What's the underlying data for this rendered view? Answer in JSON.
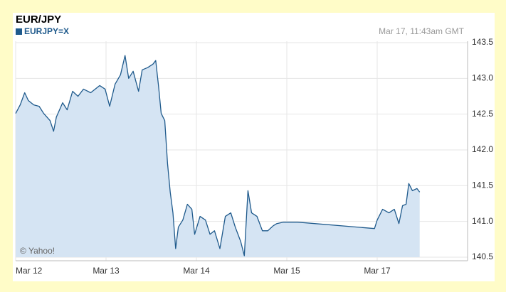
{
  "chart_data": {
    "type": "line",
    "title": "EUR/JPY",
    "timestamp": "Mar 17, 11:43am GMT",
    "source_note": "© Yahoo!",
    "x": [
      0,
      0.05,
      0.1,
      0.14,
      0.2,
      0.26,
      0.31,
      0.38,
      0.42,
      0.45,
      0.52,
      0.57,
      0.63,
      0.69,
      0.75,
      0.83,
      0.93,
      0.99,
      1.04,
      1.1,
      1.16,
      1.21,
      1.25,
      1.3,
      1.36,
      1.4,
      1.46,
      1.52,
      1.55,
      1.58,
      1.61,
      1.65,
      1.68,
      1.71,
      1.74,
      1.77,
      1.8,
      1.85,
      1.9,
      1.95,
      1.98,
      2.04,
      2.1,
      2.15,
      2.2,
      2.26,
      2.32,
      2.38,
      2.43,
      2.49,
      2.53,
      2.57,
      2.61,
      2.67,
      2.73,
      2.79,
      2.85,
      2.89,
      2.96,
      3.12,
      3.97,
      4.0,
      4.06,
      4.13,
      4.19,
      4.24,
      4.28,
      4.32,
      4.35,
      4.39,
      4.44,
      4.47
    ],
    "series": [
      {
        "name": "EURJPY=X",
        "color": "#1f5a8c",
        "fill": "#d5e4f3",
        "values": [
          142.51,
          142.63,
          142.8,
          142.69,
          142.63,
          142.61,
          142.51,
          142.41,
          142.26,
          142.46,
          142.66,
          142.56,
          142.82,
          142.75,
          142.85,
          142.8,
          142.9,
          142.85,
          142.61,
          142.92,
          143.05,
          143.32,
          143.0,
          143.1,
          142.82,
          143.12,
          143.15,
          143.2,
          143.25,
          142.9,
          142.51,
          142.41,
          141.81,
          141.41,
          141.12,
          140.62,
          140.92,
          141.02,
          141.24,
          141.17,
          140.82,
          141.07,
          141.02,
          140.82,
          140.87,
          140.62,
          141.07,
          141.12,
          140.92,
          140.72,
          140.52,
          141.43,
          141.12,
          141.07,
          140.87,
          140.87,
          140.94,
          140.97,
          140.99,
          140.99,
          140.9,
          141.02,
          141.17,
          141.12,
          141.17,
          140.97,
          141.22,
          141.24,
          141.53,
          141.43,
          141.46,
          141.41
        ]
      }
    ],
    "xlim": [
      0,
      5
    ],
    "xticks": [
      {
        "value": 0,
        "label": "Mar 12"
      },
      {
        "value": 1,
        "label": "Mar 13"
      },
      {
        "value": 2,
        "label": "Mar 14"
      },
      {
        "value": 3,
        "label": "Mar 15"
      },
      {
        "value": 4,
        "label": "Mar 17"
      }
    ],
    "ylim": [
      140.5,
      143.5
    ],
    "yticks": [
      140.5,
      {
        "value": 141,
        "label": "141.0"
      },
      141.5,
      {
        "value": 142,
        "label": "142.0"
      },
      142.5,
      {
        "value": 143,
        "label": "143.0"
      },
      143.5
    ],
    "grid": true
  }
}
